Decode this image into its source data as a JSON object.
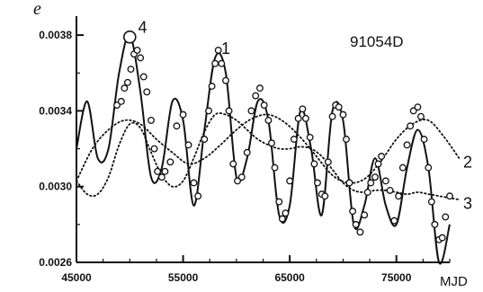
{
  "chart_data": {
    "type": "scatter",
    "title": "91054D",
    "ylabel": "e",
    "xlabel": "MJD",
    "xlim": [
      45000,
      80000
    ],
    "ylim": [
      0.0026,
      0.0039
    ],
    "x_ticks": [
      {
        "value": 45000,
        "label": "45000"
      },
      {
        "value": 55000,
        "label": "55000"
      },
      {
        "value": 65000,
        "label": "65000"
      },
      {
        "value": 75000,
        "label": "75000"
      }
    ],
    "y_ticks": [
      {
        "value": 0.0026,
        "label": "0.0026"
      },
      {
        "value": 0.003,
        "label": "0.0030"
      },
      {
        "value": 0.0034,
        "label": "0.0034"
      },
      {
        "value": 0.0038,
        "label": "0.0038"
      }
    ],
    "curve_labels": [
      {
        "label": "1",
        "x": 59000,
        "y": 0.00373
      },
      {
        "label": "4",
        "x": 51200,
        "y": 0.00384
      },
      {
        "label": "2",
        "x": 82000,
        "y": 0.00313
      },
      {
        "label": "3",
        "x": 82000,
        "y": 0.00291
      }
    ],
    "series": [
      {
        "label": "1",
        "style": "solid",
        "x": [
          45000,
          46000,
          47000,
          48000,
          49000,
          50000,
          51000,
          52000,
          53000,
          54000,
          55000,
          56000,
          57000,
          58000,
          59000,
          60000,
          61000,
          62000,
          63000,
          64000,
          65000,
          66000,
          67000,
          68000,
          69000,
          70000,
          71000,
          72000,
          73000,
          74000,
          75000,
          76000,
          77000,
          78000,
          79000,
          80000
        ],
        "y": [
          0.0032,
          0.00345,
          0.00315,
          0.0032,
          0.0036,
          0.0038,
          0.0035,
          0.00305,
          0.0031,
          0.00345,
          0.00335,
          0.0029,
          0.0033,
          0.00368,
          0.0036,
          0.00305,
          0.00315,
          0.00345,
          0.00335,
          0.00285,
          0.0029,
          0.0034,
          0.0032,
          0.00285,
          0.0034,
          0.00335,
          0.0028,
          0.0029,
          0.00315,
          0.0029,
          0.0028,
          0.0031,
          0.0033,
          0.0031,
          0.0026,
          0.0028
        ]
      },
      {
        "label": "2",
        "style": "dotted",
        "x": [
          45000,
          46500,
          48000,
          49500,
          51000,
          52500,
          54000,
          55500,
          57000,
          58500,
          60000,
          61500,
          63000,
          64500,
          66000,
          67500,
          69000,
          70500,
          72000,
          73500,
          75000,
          76500,
          78000,
          79500,
          81000
        ],
        "y": [
          0.00303,
          0.0032,
          0.0033,
          0.00335,
          0.00333,
          0.00325,
          0.00318,
          0.00312,
          0.00315,
          0.00322,
          0.0033,
          0.00336,
          0.00338,
          0.00334,
          0.00326,
          0.00316,
          0.00306,
          0.00302,
          0.00304,
          0.00313,
          0.00325,
          0.00333,
          0.00335,
          0.00326,
          0.00314
        ]
      },
      {
        "label": "3",
        "style": "dotted",
        "x": [
          45000,
          46000,
          47000,
          48000,
          49000,
          50000,
          51000,
          52000,
          53000,
          54000,
          55000,
          56000,
          57000,
          58000,
          59000,
          60000,
          61000,
          62000,
          63000,
          64000,
          65000,
          66000,
          67000,
          68000,
          69000,
          70000,
          71000,
          72000,
          73000,
          74000,
          75000,
          76000,
          77000,
          78000,
          79000,
          80000,
          81000
        ],
        "y": [
          0.00303,
          0.00296,
          0.00296,
          0.00305,
          0.00322,
          0.00333,
          0.00331,
          0.00318,
          0.00306,
          0.003,
          0.00303,
          0.00315,
          0.00329,
          0.00338,
          0.00338,
          0.00335,
          0.0033,
          0.00325,
          0.00322,
          0.0032,
          0.0032,
          0.00321,
          0.0032,
          0.00316,
          0.00309,
          0.00302,
          0.00298,
          0.00297,
          0.00298,
          0.00298,
          0.00297,
          0.00296,
          0.00297,
          0.00296,
          0.00295,
          0.00294,
          0.00293
        ]
      },
      {
        "label": "observations",
        "style": "open-circle",
        "x": [
          48800,
          49200,
          49500,
          49800,
          50100,
          50400,
          50700,
          51000,
          51300,
          51600,
          52000,
          52300,
          52600,
          53000,
          53300,
          53800,
          54400,
          55000,
          55500,
          56000,
          56400,
          57000,
          57400,
          57700,
          58000,
          58300,
          58600,
          59000,
          59300,
          59700,
          60100,
          60500,
          61000,
          61400,
          61800,
          62200,
          62600,
          63000,
          63300,
          63600,
          64000,
          64300,
          64600,
          65000,
          65400,
          65800,
          66200,
          66500,
          66900,
          67300,
          67600,
          68000,
          68300,
          68600,
          69000,
          69300,
          69600,
          70000,
          70300,
          70600,
          70900,
          71200,
          71600,
          72000,
          72300,
          72600,
          73000,
          73300,
          73600,
          74000,
          74400,
          74800,
          75200,
          75600,
          76000,
          76300,
          76600,
          77000,
          77300,
          77600,
          78000,
          78300,
          78600,
          79000,
          79300,
          79600,
          80000
        ],
        "y": [
          0.00343,
          0.00345,
          0.00352,
          0.00355,
          0.00362,
          0.0037,
          0.00372,
          0.00368,
          0.00358,
          0.0035,
          0.00335,
          0.0032,
          0.00308,
          0.00305,
          0.00308,
          0.00313,
          0.00332,
          0.00338,
          0.00322,
          0.00302,
          0.00295,
          0.00325,
          0.0034,
          0.00353,
          0.00365,
          0.00372,
          0.00365,
          0.00356,
          0.0034,
          0.00312,
          0.00303,
          0.00305,
          0.00318,
          0.0034,
          0.00348,
          0.00352,
          0.00343,
          0.00335,
          0.00323,
          0.0031,
          0.00292,
          0.00283,
          0.00286,
          0.00303,
          0.00325,
          0.00336,
          0.00341,
          0.00336,
          0.00326,
          0.00312,
          0.00302,
          0.00296,
          0.00295,
          0.00313,
          0.00337,
          0.00343,
          0.00342,
          0.00338,
          0.00325,
          0.00302,
          0.00287,
          0.0028,
          0.00276,
          0.00285,
          0.00297,
          0.00302,
          0.00305,
          0.00312,
          0.00316,
          0.00303,
          0.00298,
          0.00282,
          0.00295,
          0.0031,
          0.00322,
          0.00332,
          0.0034,
          0.00342,
          0.00337,
          0.00325,
          0.0031,
          0.00292,
          0.0028,
          0.00272,
          0.00273,
          0.00284,
          0.00295
        ]
      }
    ]
  },
  "marker_big": {
    "x": 50000,
    "y": 0.00379
  },
  "colors": {
    "ink": "#111111",
    "background": "#ffffff"
  }
}
